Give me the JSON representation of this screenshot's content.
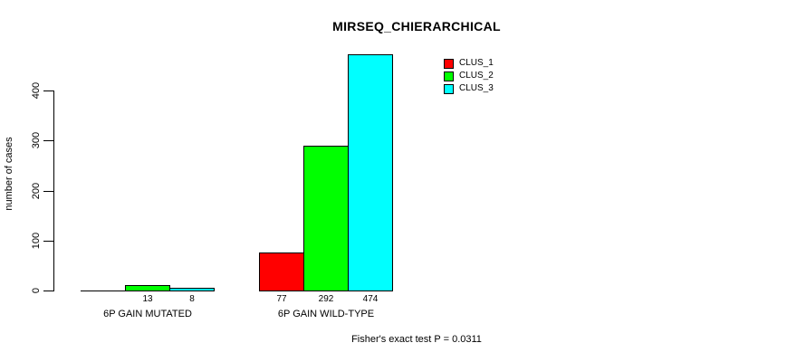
{
  "title": "MIRSEQ_CHIERARCHICAL",
  "y_axis": {
    "label": "number of cases",
    "ticks": [
      0,
      100,
      200,
      300,
      400
    ]
  },
  "x_axis": {
    "group_labels": [
      "6P GAIN MUTATED",
      "6P GAIN WILD-TYPE"
    ]
  },
  "footer": {
    "text": "Fisher's exact test P = 0.0311"
  },
  "colors": {
    "background": "#ffffff",
    "axis": "#000000",
    "clus_1": "#ff0000",
    "clus_2": "#00ff00",
    "clus_3": "#00ffff"
  },
  "chart_data": {
    "type": "bar",
    "title": "MIRSEQ_CHIERARCHICAL",
    "categories": [
      "6P GAIN MUTATED",
      "6P GAIN WILD-TYPE"
    ],
    "series": [
      {
        "name": "CLUS_1",
        "color": "#ff0000",
        "values": [
          0,
          77
        ]
      },
      {
        "name": "CLUS_2",
        "color": "#00ff00",
        "values": [
          13,
          292
        ]
      },
      {
        "name": "CLUS_3",
        "color": "#00ffff",
        "values": [
          8,
          474
        ]
      }
    ],
    "bar_value_labels": [
      [
        null,
        13,
        8
      ],
      [
        77,
        292,
        474
      ]
    ],
    "zero_bars_drawn_as_line": true,
    "xlabel": "",
    "ylabel": "number of cases",
    "ylim": [
      0,
      474
    ],
    "yticks": [
      0,
      100,
      200,
      300,
      400
    ],
    "grid": false,
    "bar_borders": "#000000",
    "legend_position": "top-right",
    "annotation": "Fisher's exact test P = 0.0311"
  }
}
